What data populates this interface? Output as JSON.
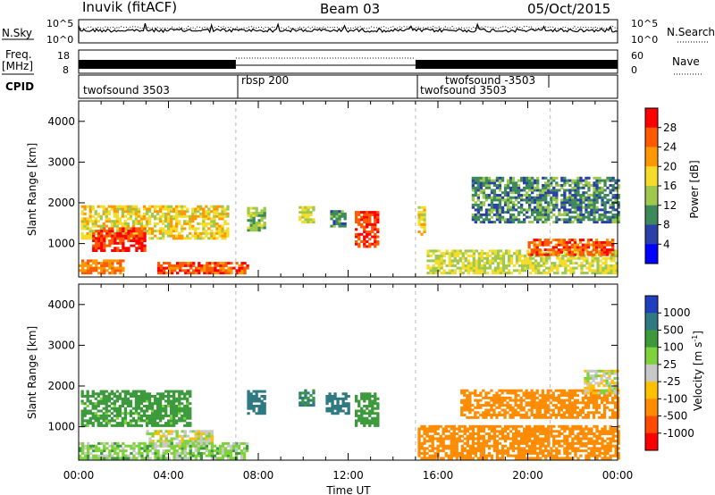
{
  "header": {
    "radar": "Inuvik (fitACF)",
    "beam": "Beam 03",
    "date": "05/Oct/2015"
  },
  "noise_panel": {
    "left_label": "N.Sky",
    "right_label": "N.Search",
    "left_ticks": [
      "10^5",
      "10^0"
    ],
    "right_ticks": [
      "10^5",
      "10^0"
    ]
  },
  "freq_panel": {
    "left_label_line1": "Freq.",
    "left_label_line2": "[MHz]",
    "right_label": "Nave",
    "left_ticks": [
      "18",
      "8"
    ],
    "right_ticks": [
      "60",
      "0"
    ]
  },
  "cpid_panel": {
    "label": "CPID",
    "segments": [
      {
        "name": "twofsound 3503",
        "start_hour": 0,
        "end_hour": 7
      },
      {
        "name": "rbsp 200",
        "start_hour": 7,
        "end_hour": 15
      },
      {
        "name": "twofsound 3503",
        "start_hour": 15,
        "end_hour": 21
      },
      {
        "name": "twofsound -3503",
        "start_hour": 15,
        "end_hour": 21
      }
    ]
  },
  "power_panel": {
    "ylabel": "Slant Range [km]",
    "colorbar_label": "Power [dB]",
    "colorbar_ticks": [
      "28",
      "24",
      "20",
      "16",
      "12",
      "8",
      "4"
    ],
    "colorbar_colors": [
      "#ff0000",
      "#ff5a00",
      "#ff9800",
      "#f6dc2a",
      "#9ec84e",
      "#3c8a5a",
      "#2a3fa8",
      "#0000ff"
    ]
  },
  "velocity_panel": {
    "ylabel": "Slant Range [km]",
    "colorbar_label": "Velocity [m s",
    "colorbar_label_sup": "-1",
    "colorbar_label_end": "]",
    "colorbar_ticks": [
      "1000",
      "500",
      "100",
      "25",
      "-25",
      "-100",
      "-500",
      "-1000"
    ],
    "colorbar_colors": [
      "#1f3fbf",
      "#2f7a82",
      "#3c9a3c",
      "#7ed33c",
      "#c8c8c8",
      "#ffc000",
      "#ff8c00",
      "#ff4a00",
      "#ff0000"
    ]
  },
  "x_axis": {
    "label": "Time UT",
    "tick_labels": [
      "00:00",
      "04:00",
      "08:00",
      "12:00",
      "16:00",
      "20:00",
      "00:00"
    ]
  },
  "chart_data": {
    "type": "heatmap",
    "x_unit": "hours UT",
    "xlim": [
      0,
      24
    ],
    "y_unit": "km",
    "ylim": [
      180,
      4500
    ],
    "yticks": [
      1000,
      2000,
      3000,
      4000
    ],
    "mode_change_hours": [
      7,
      15,
      21
    ],
    "power_regions_db": [
      {
        "t0": 0.1,
        "t1": 6.6,
        "r0": 1100,
        "r1": 1900,
        "value": 18
      },
      {
        "t0": 0.6,
        "t1": 3.0,
        "r0": 800,
        "r1": 1400,
        "value": 28
      },
      {
        "t0": 0.0,
        "t1": 2.0,
        "r0": 250,
        "r1": 600,
        "value": 24
      },
      {
        "t0": 3.5,
        "t1": 7.5,
        "r0": 250,
        "r1": 550,
        "value": 26
      },
      {
        "t0": 7.5,
        "t1": 8.3,
        "r0": 1300,
        "r1": 1900,
        "value": 14
      },
      {
        "t0": 9.8,
        "t1": 10.4,
        "r0": 1500,
        "r1": 1900,
        "value": 16
      },
      {
        "t0": 11.2,
        "t1": 11.9,
        "r0": 1400,
        "r1": 1800,
        "value": 10
      },
      {
        "t0": 12.3,
        "t1": 13.3,
        "r0": 900,
        "r1": 1800,
        "value": 28
      },
      {
        "t0": 15.1,
        "t1": 15.4,
        "r0": 1200,
        "r1": 1900,
        "value": 18
      },
      {
        "t0": 15.5,
        "t1": 24.0,
        "r0": 250,
        "r1": 800,
        "value": 16
      },
      {
        "t0": 20.0,
        "t1": 23.8,
        "r0": 700,
        "r1": 1100,
        "value": 26
      },
      {
        "t0": 17.5,
        "t1": 24.0,
        "r0": 1500,
        "r1": 2600,
        "value": 10
      }
    ],
    "velocity_regions_ms": [
      {
        "t0": 0.1,
        "t1": 5.0,
        "r0": 1000,
        "r1": 1900,
        "value": 150
      },
      {
        "t0": 3.0,
        "t1": 6.0,
        "r0": 500,
        "r1": 900,
        "value": 0
      },
      {
        "t0": 0.0,
        "t1": 7.5,
        "r0": 200,
        "r1": 600,
        "value": 60
      },
      {
        "t0": 7.5,
        "t1": 8.3,
        "r0": 1300,
        "r1": 1900,
        "value": 700
      },
      {
        "t0": 9.8,
        "t1": 10.4,
        "r0": 1500,
        "r1": 1900,
        "value": 500
      },
      {
        "t0": 11.0,
        "t1": 12.0,
        "r0": 1300,
        "r1": 1800,
        "value": 600
      },
      {
        "t0": 12.3,
        "t1": 13.3,
        "r0": 1000,
        "r1": 1800,
        "value": 200
      },
      {
        "t0": 15.1,
        "t1": 24.0,
        "r0": 200,
        "r1": 1000,
        "value": -300
      },
      {
        "t0": 17.0,
        "t1": 24.0,
        "r0": 1200,
        "r1": 1900,
        "value": -400
      },
      {
        "t0": 22.5,
        "t1": 24.0,
        "r0": 1800,
        "r1": 2400,
        "value": 0
      }
    ]
  }
}
